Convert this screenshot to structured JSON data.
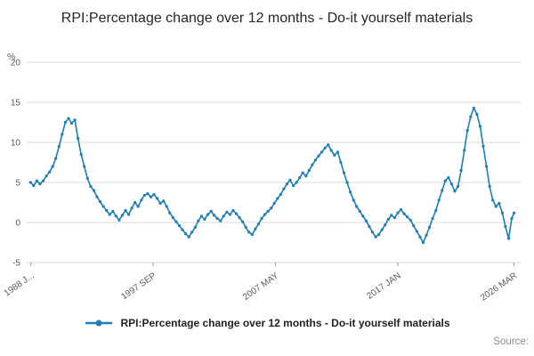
{
  "page": {
    "source_label": "Source:"
  },
  "legend": {
    "label": "RPI:Percentage change over 12 months - Do-it yourself materials"
  },
  "chart_data": {
    "type": "line",
    "title": "RPI:Percentage change over 12 months - Do-it yourself materials",
    "xlabel": "",
    "ylabel": "%",
    "ylim": [
      -5,
      20
    ],
    "yticks": [
      -5,
      0,
      5,
      10,
      15,
      20
    ],
    "xlim": [
      1987.7,
      2026.7
    ],
    "xticks": [
      {
        "pos": 1988.04,
        "label": "1988 J..."
      },
      {
        "pos": 1997.67,
        "label": "1997 SEP"
      },
      {
        "pos": 2007.33,
        "label": "2007 MAY"
      },
      {
        "pos": 2017.0,
        "label": "2017 JAN"
      },
      {
        "pos": 2026.17,
        "label": "2026 MAR"
      }
    ],
    "grid": "horizontal",
    "legend_position": "bottom",
    "series": [
      {
        "name": "RPI:Percentage change over 12 months - Do-it yourself materials",
        "color": "#1e7eb8",
        "points": [
          [
            1988.0,
            5.0
          ],
          [
            1988.25,
            4.6
          ],
          [
            1988.5,
            5.2
          ],
          [
            1988.75,
            4.8
          ],
          [
            1989.0,
            5.2
          ],
          [
            1989.25,
            5.8
          ],
          [
            1989.5,
            6.3
          ],
          [
            1989.75,
            7.0
          ],
          [
            1990.0,
            8.0
          ],
          [
            1990.25,
            9.5
          ],
          [
            1990.5,
            11.0
          ],
          [
            1990.75,
            12.5
          ],
          [
            1991.0,
            13.0
          ],
          [
            1991.25,
            12.4
          ],
          [
            1991.5,
            12.8
          ],
          [
            1991.75,
            10.5
          ],
          [
            1992.0,
            8.5
          ],
          [
            1992.25,
            7.0
          ],
          [
            1992.5,
            5.5
          ],
          [
            1992.75,
            4.5
          ],
          [
            1993.0,
            4.0
          ],
          [
            1993.25,
            3.2
          ],
          [
            1993.5,
            2.6
          ],
          [
            1993.75,
            2.0
          ],
          [
            1994.0,
            1.5
          ],
          [
            1994.25,
            1.0
          ],
          [
            1994.5,
            1.4
          ],
          [
            1994.75,
            0.8
          ],
          [
            1995.0,
            0.3
          ],
          [
            1995.25,
            0.9
          ],
          [
            1995.5,
            1.5
          ],
          [
            1995.75,
            1.0
          ],
          [
            1996.0,
            1.8
          ],
          [
            1996.25,
            2.5
          ],
          [
            1996.5,
            2.0
          ],
          [
            1996.75,
            2.8
          ],
          [
            1997.0,
            3.4
          ],
          [
            1997.25,
            3.6
          ],
          [
            1997.5,
            3.2
          ],
          [
            1997.75,
            3.5
          ],
          [
            1998.0,
            3.0
          ],
          [
            1998.25,
            2.4
          ],
          [
            1998.5,
            2.7
          ],
          [
            1998.75,
            2.0
          ],
          [
            1999.0,
            1.2
          ],
          [
            1999.25,
            0.6
          ],
          [
            1999.5,
            0.1
          ],
          [
            1999.75,
            -0.4
          ],
          [
            2000.0,
            -0.9
          ],
          [
            2000.25,
            -1.4
          ],
          [
            2000.5,
            -1.8
          ],
          [
            2000.75,
            -1.2
          ],
          [
            2001.0,
            -0.6
          ],
          [
            2001.25,
            0.2
          ],
          [
            2001.5,
            0.8
          ],
          [
            2001.75,
            0.4
          ],
          [
            2002.0,
            1.0
          ],
          [
            2002.25,
            1.4
          ],
          [
            2002.5,
            0.9
          ],
          [
            2002.75,
            0.5
          ],
          [
            2003.0,
            0.2
          ],
          [
            2003.25,
            0.8
          ],
          [
            2003.5,
            1.3
          ],
          [
            2003.75,
            1.0
          ],
          [
            2004.0,
            1.5
          ],
          [
            2004.25,
            1.1
          ],
          [
            2004.5,
            0.6
          ],
          [
            2004.75,
            0.1
          ],
          [
            2005.0,
            -0.6
          ],
          [
            2005.25,
            -1.2
          ],
          [
            2005.5,
            -1.5
          ],
          [
            2005.75,
            -0.8
          ],
          [
            2006.0,
            -0.2
          ],
          [
            2006.25,
            0.5
          ],
          [
            2006.5,
            1.0
          ],
          [
            2006.75,
            1.4
          ],
          [
            2007.0,
            1.8
          ],
          [
            2007.25,
            2.4
          ],
          [
            2007.5,
            3.0
          ],
          [
            2007.75,
            3.5
          ],
          [
            2008.0,
            4.2
          ],
          [
            2008.25,
            4.8
          ],
          [
            2008.5,
            5.3
          ],
          [
            2008.75,
            4.6
          ],
          [
            2009.0,
            5.0
          ],
          [
            2009.25,
            5.6
          ],
          [
            2009.5,
            6.2
          ],
          [
            2009.75,
            5.8
          ],
          [
            2010.0,
            6.5
          ],
          [
            2010.25,
            7.2
          ],
          [
            2010.5,
            7.8
          ],
          [
            2010.75,
            8.3
          ],
          [
            2011.0,
            8.8
          ],
          [
            2011.25,
            9.3
          ],
          [
            2011.5,
            9.7
          ],
          [
            2011.75,
            9.0
          ],
          [
            2012.0,
            8.4
          ],
          [
            2012.25,
            8.8
          ],
          [
            2012.5,
            7.5
          ],
          [
            2012.75,
            6.2
          ],
          [
            2013.0,
            5.0
          ],
          [
            2013.25,
            3.8
          ],
          [
            2013.5,
            2.8
          ],
          [
            2013.75,
            2.0
          ],
          [
            2014.0,
            1.4
          ],
          [
            2014.25,
            0.8
          ],
          [
            2014.5,
            0.2
          ],
          [
            2014.75,
            -0.5
          ],
          [
            2015.0,
            -1.2
          ],
          [
            2015.25,
            -1.8
          ],
          [
            2015.5,
            -1.5
          ],
          [
            2015.75,
            -0.9
          ],
          [
            2016.0,
            -0.3
          ],
          [
            2016.25,
            0.4
          ],
          [
            2016.5,
            0.9
          ],
          [
            2016.75,
            0.6
          ],
          [
            2017.0,
            1.2
          ],
          [
            2017.25,
            1.6
          ],
          [
            2017.5,
            1.1
          ],
          [
            2017.75,
            0.7
          ],
          [
            2018.0,
            0.3
          ],
          [
            2018.25,
            -0.4
          ],
          [
            2018.5,
            -1.1
          ],
          [
            2018.75,
            -1.8
          ],
          [
            2019.0,
            -2.5
          ],
          [
            2019.25,
            -1.6
          ],
          [
            2019.5,
            -0.6
          ],
          [
            2019.75,
            0.5
          ],
          [
            2020.0,
            1.5
          ],
          [
            2020.25,
            2.8
          ],
          [
            2020.5,
            4.0
          ],
          [
            2020.75,
            5.2
          ],
          [
            2021.0,
            5.6
          ],
          [
            2021.25,
            4.8
          ],
          [
            2021.5,
            3.9
          ],
          [
            2021.75,
            4.5
          ],
          [
            2022.0,
            6.5
          ],
          [
            2022.25,
            9.0
          ],
          [
            2022.5,
            11.5
          ],
          [
            2022.75,
            13.2
          ],
          [
            2023.0,
            14.3
          ],
          [
            2023.25,
            13.5
          ],
          [
            2023.5,
            12.0
          ],
          [
            2023.75,
            9.5
          ],
          [
            2024.0,
            7.0
          ],
          [
            2024.25,
            4.5
          ],
          [
            2024.5,
            2.8
          ],
          [
            2024.75,
            2.0
          ],
          [
            2025.0,
            2.4
          ],
          [
            2025.25,
            1.2
          ],
          [
            2025.5,
            -0.5
          ],
          [
            2025.75,
            -2.0
          ],
          [
            2026.0,
            0.5
          ],
          [
            2026.17,
            1.2
          ]
        ]
      }
    ]
  }
}
